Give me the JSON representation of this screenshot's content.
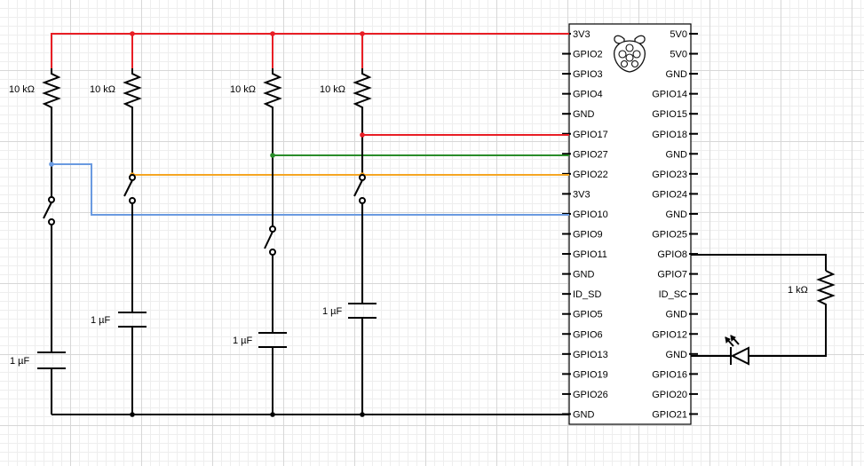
{
  "board": {
    "name": "Raspberry Pi",
    "logo_icon": "raspberry-pi-logo",
    "left_pins": [
      "3V3",
      "GPIO2",
      "GPIO3",
      "GPIO4",
      "GND",
      "GPIO17",
      "GPIO27",
      "GPIO22",
      "3V3",
      "GPIO10",
      "GPIO9",
      "GPIO11",
      "GND",
      "ID_SD",
      "GPIO5",
      "GPIO6",
      "GPIO13",
      "GPIO19",
      "GPIO26",
      "GND"
    ],
    "right_pins": [
      "5V0",
      "5V0",
      "GND",
      "GPIO14",
      "GPIO15",
      "GPIO18",
      "GND",
      "GPIO23",
      "GPIO24",
      "GND",
      "GPIO25",
      "GPIO8",
      "GPIO7",
      "ID_SC",
      "GND",
      "GPIO12",
      "GND",
      "GPIO16",
      "GPIO20",
      "GPIO21"
    ]
  },
  "components": {
    "resistors": [
      {
        "label": "10 kΩ"
      },
      {
        "label": "10 kΩ"
      },
      {
        "label": "10 kΩ"
      },
      {
        "label": "10 kΩ"
      },
      {
        "label": "1 kΩ"
      }
    ],
    "capacitors": [
      {
        "label": "1 µF"
      },
      {
        "label": "1 µF"
      },
      {
        "label": "1 µF"
      },
      {
        "label": "1 µF"
      }
    ],
    "switches": [
      "push-button-1",
      "push-button-2",
      "push-button-3",
      "push-button-4"
    ],
    "led": {
      "icon": "led-icon"
    }
  },
  "wires": {
    "colors": {
      "power": "#e81e25",
      "gpio17": "#e81e25",
      "gpio27": "#2a8c2a",
      "gpio22": "#f5a623",
      "gpio10": "#6a9ae0",
      "ground": "#000000"
    },
    "connections": [
      {
        "net": "3V3",
        "to": "resistor pull-ups"
      },
      {
        "net": "GPIO17",
        "to": "button 4"
      },
      {
        "net": "GPIO27",
        "to": "button 3"
      },
      {
        "net": "GPIO22",
        "to": "button 2"
      },
      {
        "net": "GPIO10",
        "to": "button 1"
      },
      {
        "net": "GPIO8",
        "to": "1 kΩ → LED → GND"
      }
    ]
  }
}
